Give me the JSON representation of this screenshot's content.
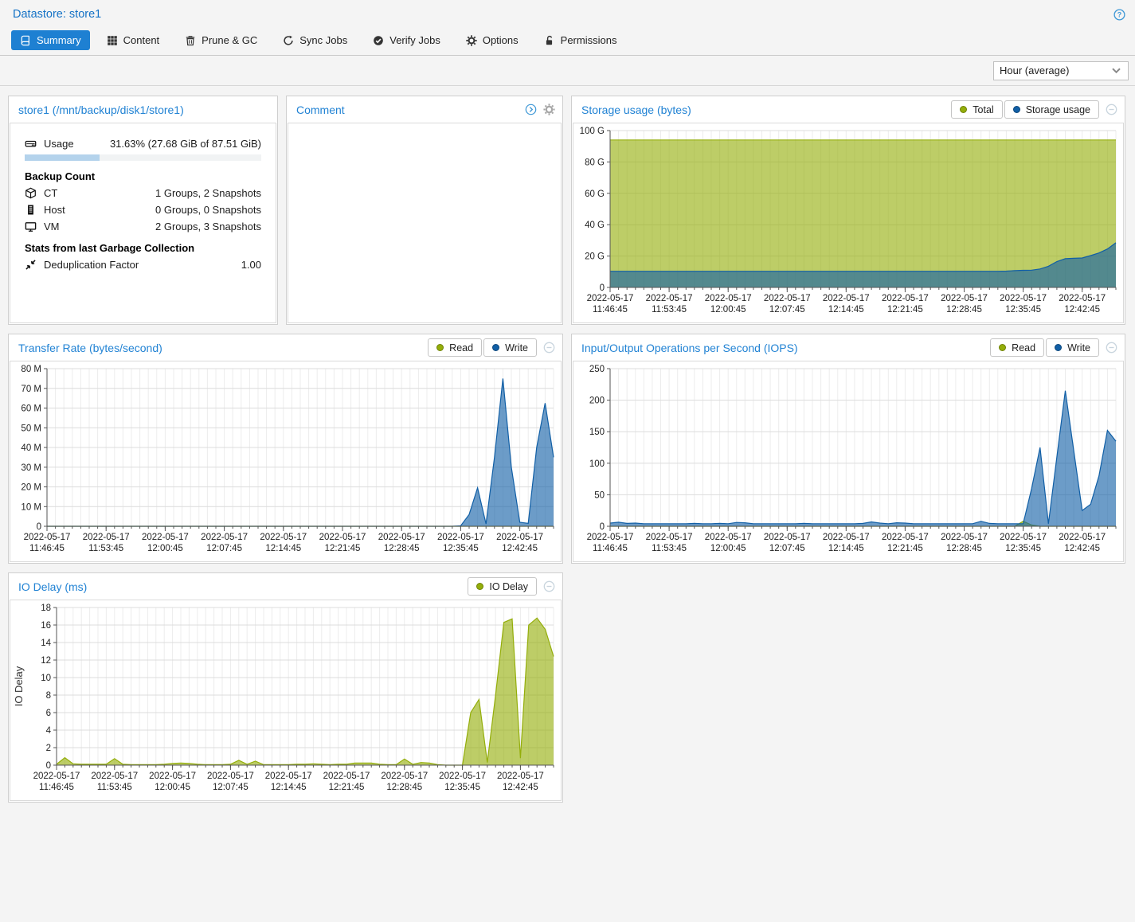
{
  "colors": {
    "accent_blue": "#1e80d2",
    "chart_olive": "#94ae0a",
    "chart_blue": "#115fa6",
    "progress_fill": "#b4d3ec"
  },
  "header": {
    "title": "Datastore: store1"
  },
  "tabs": [
    {
      "label": "Summary",
      "icon": "book-icon",
      "active": true
    },
    {
      "label": "Content",
      "icon": "grid-icon",
      "active": false
    },
    {
      "label": "Prune & GC",
      "icon": "trash-icon",
      "active": false
    },
    {
      "label": "Sync Jobs",
      "icon": "sync-icon",
      "active": false
    },
    {
      "label": "Verify Jobs",
      "icon": "check-circle-icon",
      "active": false
    },
    {
      "label": "Options",
      "icon": "gear-icon",
      "active": false
    },
    {
      "label": "Permissions",
      "icon": "unlock-icon",
      "active": false
    }
  ],
  "toolbar": {
    "timeframe": "Hour (average)"
  },
  "panels": {
    "datastore": {
      "title": "store1 (/mnt/backup/disk1/store1)",
      "usage": {
        "icon": "hdd-icon",
        "label": "Usage",
        "value": "31.63% (27.68 GiB of 87.51 GiB)",
        "percent": 31.63
      },
      "backup_count": {
        "heading": "Backup Count",
        "rows": [
          {
            "icon": "cube-icon",
            "label": "CT",
            "value": "1 Groups, 2 Snapshots"
          },
          {
            "icon": "server-icon",
            "label": "Host",
            "value": "0 Groups, 0 Snapshots"
          },
          {
            "icon": "monitor-icon",
            "label": "VM",
            "value": "2 Groups, 3 Snapshots"
          }
        ]
      },
      "garbage_collection": {
        "heading": "Stats from last Garbage Collection",
        "rows": [
          {
            "icon": "compress-icon",
            "label": "Deduplication Factor",
            "value": "1.00"
          }
        ]
      }
    },
    "comment": {
      "title": "Comment",
      "body": ""
    }
  },
  "chart_data": [
    {
      "type": "area",
      "title": "Storage usage (bytes)",
      "legend": [
        {
          "label": "Total",
          "color": "#94ae0a"
        },
        {
          "label": "Storage usage",
          "color": "#115fa6"
        }
      ],
      "x_start": "2022-05-17 11:46:45",
      "x_step_minutes": 1,
      "ylim": [
        0,
        100
      ],
      "yticks": [
        0,
        20,
        40,
        60,
        80,
        100
      ],
      "ytick_labels": [
        "0",
        "20 G",
        "40 G",
        "60 G",
        "80 G",
        "100 G"
      ],
      "x_labels": [
        {
          "i": 0,
          "date": "2022-05-17",
          "time": "11:46:45"
        },
        {
          "i": 7,
          "date": "2022-05-17",
          "time": "11:53:45"
        },
        {
          "i": 14,
          "date": "2022-05-17",
          "time": "12:00:45"
        },
        {
          "i": 21,
          "date": "2022-05-17",
          "time": "12:07:45"
        },
        {
          "i": 28,
          "date": "2022-05-17",
          "time": "12:14:45"
        },
        {
          "i": 35,
          "date": "2022-05-17",
          "time": "12:21:45"
        },
        {
          "i": 42,
          "date": "2022-05-17",
          "time": "12:28:45"
        },
        {
          "i": 49,
          "date": "2022-05-17",
          "time": "12:35:45"
        },
        {
          "i": 56,
          "date": "2022-05-17",
          "time": "12:42:45"
        }
      ],
      "series": [
        {
          "name": "Total",
          "color": "#94ae0a",
          "values": [
            94,
            94,
            94,
            94,
            94,
            94,
            94,
            94,
            94,
            94,
            94,
            94,
            94,
            94,
            94,
            94,
            94,
            94,
            94,
            94,
            94,
            94,
            94,
            94,
            94,
            94,
            94,
            94,
            94,
            94,
            94,
            94,
            94,
            94,
            94,
            94,
            94,
            94,
            94,
            94,
            94,
            94,
            94,
            94,
            94,
            94,
            94,
            94,
            94,
            94,
            94,
            94,
            94,
            94,
            94,
            94,
            94,
            94,
            94,
            94,
            94
          ]
        },
        {
          "name": "Storage usage",
          "color": "#115fa6",
          "values": [
            10.3,
            10.3,
            10.3,
            10.3,
            10.3,
            10.3,
            10.3,
            10.3,
            10.3,
            10.3,
            10.3,
            10.3,
            10.3,
            10.3,
            10.3,
            10.3,
            10.3,
            10.3,
            10.3,
            10.3,
            10.3,
            10.3,
            10.3,
            10.3,
            10.3,
            10.3,
            10.3,
            10.3,
            10.3,
            10.3,
            10.3,
            10.3,
            10.3,
            10.3,
            10.3,
            10.3,
            10.3,
            10.3,
            10.3,
            10.3,
            10.3,
            10.3,
            10.3,
            10.3,
            10.3,
            10.3,
            10.3,
            10.4,
            10.7,
            10.9,
            11,
            11.8,
            13.5,
            16.5,
            18.3,
            18.6,
            18.8,
            20.3,
            22,
            24.5,
            28.5
          ]
        }
      ]
    },
    {
      "type": "area",
      "title": "Transfer Rate (bytes/second)",
      "legend": [
        {
          "label": "Read",
          "color": "#94ae0a"
        },
        {
          "label": "Write",
          "color": "#115fa6"
        }
      ],
      "x_start": "2022-05-17 11:46:45",
      "x_step_minutes": 1,
      "ylim": [
        0,
        80
      ],
      "yticks": [
        0,
        10,
        20,
        30,
        40,
        50,
        60,
        70,
        80
      ],
      "ytick_labels": [
        "0",
        "10 M",
        "20 M",
        "30 M",
        "40 M",
        "50 M",
        "60 M",
        "70 M",
        "80 M"
      ],
      "x_labels": [
        {
          "i": 0,
          "date": "2022-05-17",
          "time": "11:46:45"
        },
        {
          "i": 7,
          "date": "2022-05-17",
          "time": "11:53:45"
        },
        {
          "i": 14,
          "date": "2022-05-17",
          "time": "12:00:45"
        },
        {
          "i": 21,
          "date": "2022-05-17",
          "time": "12:07:45"
        },
        {
          "i": 28,
          "date": "2022-05-17",
          "time": "12:14:45"
        },
        {
          "i": 35,
          "date": "2022-05-17",
          "time": "12:21:45"
        },
        {
          "i": 42,
          "date": "2022-05-17",
          "time": "12:28:45"
        },
        {
          "i": 49,
          "date": "2022-05-17",
          "time": "12:35:45"
        },
        {
          "i": 56,
          "date": "2022-05-17",
          "time": "12:42:45"
        }
      ],
      "series": [
        {
          "name": "Read",
          "color": "#94ae0a",
          "values": [
            0,
            0,
            0,
            0,
            0,
            0,
            0,
            0,
            0,
            0,
            0,
            0,
            0,
            0,
            0,
            0,
            0,
            0,
            0,
            0,
            0,
            0,
            0,
            0,
            0,
            0,
            0,
            0,
            0,
            0,
            0,
            0,
            0,
            0,
            0,
            0,
            0,
            0,
            0,
            0,
            0,
            0,
            0,
            0,
            0,
            0,
            0,
            0,
            0,
            0,
            0,
            0,
            0,
            0,
            0,
            0,
            0,
            0,
            0,
            0,
            0
          ]
        },
        {
          "name": "Write",
          "color": "#115fa6",
          "values": [
            0,
            0,
            0,
            0,
            0,
            0,
            0,
            0,
            0,
            0,
            0,
            0,
            0,
            0,
            0,
            0,
            0,
            0,
            0,
            0,
            0,
            0,
            0,
            0,
            0,
            0,
            0,
            0,
            0,
            0,
            0,
            0,
            0,
            0,
            0,
            0,
            0,
            0,
            0,
            0,
            0,
            0,
            0,
            0,
            0,
            0,
            0,
            0,
            0,
            0.3,
            6,
            19.5,
            1.2,
            35,
            75,
            30,
            2,
            1.5,
            40,
            62.5,
            35
          ]
        }
      ]
    },
    {
      "type": "area",
      "title": "Input/Output Operations per Second (IOPS)",
      "legend": [
        {
          "label": "Read",
          "color": "#94ae0a"
        },
        {
          "label": "Write",
          "color": "#115fa6"
        }
      ],
      "x_start": "2022-05-17 11:46:45",
      "x_step_minutes": 1,
      "ylim": [
        0,
        250
      ],
      "yticks": [
        0,
        50,
        100,
        150,
        200,
        250
      ],
      "ytick_labels": [
        "0",
        "50",
        "100",
        "150",
        "200",
        "250"
      ],
      "x_labels": [
        {
          "i": 0,
          "date": "2022-05-17",
          "time": "11:46:45"
        },
        {
          "i": 7,
          "date": "2022-05-17",
          "time": "11:53:45"
        },
        {
          "i": 14,
          "date": "2022-05-17",
          "time": "12:00:45"
        },
        {
          "i": 21,
          "date": "2022-05-17",
          "time": "12:07:45"
        },
        {
          "i": 28,
          "date": "2022-05-17",
          "time": "12:14:45"
        },
        {
          "i": 35,
          "date": "2022-05-17",
          "time": "12:21:45"
        },
        {
          "i": 42,
          "date": "2022-05-17",
          "time": "12:28:45"
        },
        {
          "i": 49,
          "date": "2022-05-17",
          "time": "12:35:45"
        },
        {
          "i": 56,
          "date": "2022-05-17",
          "time": "12:42:45"
        }
      ],
      "series": [
        {
          "name": "Read",
          "color": "#94ae0a",
          "values": [
            0,
            0,
            0,
            0,
            0,
            0,
            0,
            0,
            0,
            0,
            0,
            0,
            0,
            0,
            0,
            0,
            0,
            0,
            0,
            0,
            0,
            0,
            0,
            0,
            0,
            0,
            0,
            0,
            0,
            0,
            0,
            0,
            0,
            0,
            0,
            0,
            0,
            0,
            0,
            0,
            0,
            0,
            0,
            0,
            0,
            0,
            0,
            0,
            0,
            8,
            2,
            0,
            0,
            0,
            0,
            0,
            0,
            0,
            0,
            0,
            0
          ]
        },
        {
          "name": "Write",
          "color": "#115fa6",
          "values": [
            5,
            6.5,
            4.5,
            5,
            4,
            4,
            4,
            4,
            4,
            4,
            4.5,
            4,
            4,
            4.5,
            4,
            6,
            5.5,
            4,
            4,
            4,
            4,
            4,
            4,
            4.5,
            4,
            4,
            4,
            4,
            4,
            4,
            4.5,
            7,
            5,
            4,
            5.5,
            5,
            4,
            4,
            4,
            4,
            4,
            4,
            4,
            4,
            8,
            4.5,
            4,
            4,
            4,
            4,
            60,
            125,
            4,
            110,
            215,
            120,
            25,
            35,
            80,
            152,
            135
          ]
        }
      ]
    },
    {
      "type": "area",
      "title": "IO Delay (ms)",
      "ylabel": "IO Delay",
      "legend": [
        {
          "label": "IO Delay",
          "color": "#94ae0a"
        }
      ],
      "x_start": "2022-05-17 11:46:45",
      "x_step_minutes": 1,
      "ylim": [
        0,
        18
      ],
      "yticks": [
        0,
        2,
        4,
        6,
        8,
        10,
        12,
        14,
        16,
        18
      ],
      "ytick_labels": [
        "0",
        "2",
        "4",
        "6",
        "8",
        "10",
        "12",
        "14",
        "16",
        "18"
      ],
      "x_labels": [
        {
          "i": 0,
          "date": "2022-05-17",
          "time": "11:46:45"
        },
        {
          "i": 7,
          "date": "2022-05-17",
          "time": "11:53:45"
        },
        {
          "i": 14,
          "date": "2022-05-17",
          "time": "12:00:45"
        },
        {
          "i": 21,
          "date": "2022-05-17",
          "time": "12:07:45"
        },
        {
          "i": 28,
          "date": "2022-05-17",
          "time": "12:14:45"
        },
        {
          "i": 35,
          "date": "2022-05-17",
          "time": "12:21:45"
        },
        {
          "i": 42,
          "date": "2022-05-17",
          "time": "12:28:45"
        },
        {
          "i": 49,
          "date": "2022-05-17",
          "time": "12:35:45"
        },
        {
          "i": 56,
          "date": "2022-05-17",
          "time": "12:42:45"
        }
      ],
      "series": [
        {
          "name": "IO Delay",
          "color": "#94ae0a",
          "values": [
            0.1,
            0.85,
            0.15,
            0.1,
            0.1,
            0.1,
            0.1,
            0.75,
            0.1,
            0.05,
            0.05,
            0.05,
            0.05,
            0.1,
            0.2,
            0.25,
            0.2,
            0.1,
            0.05,
            0.05,
            0.05,
            0.1,
            0.55,
            0.1,
            0.45,
            0.05,
            0.05,
            0.05,
            0.05,
            0.1,
            0.1,
            0.15,
            0.1,
            0.05,
            0.1,
            0.1,
            0.25,
            0.25,
            0.25,
            0.1,
            0.05,
            0.05,
            0.7,
            0.1,
            0.3,
            0.25,
            0.05,
            0,
            0,
            0,
            6,
            7.5,
            0.3,
            8,
            16.3,
            16.7,
            0.8,
            16,
            16.8,
            15.5,
            12.4
          ]
        }
      ]
    }
  ]
}
